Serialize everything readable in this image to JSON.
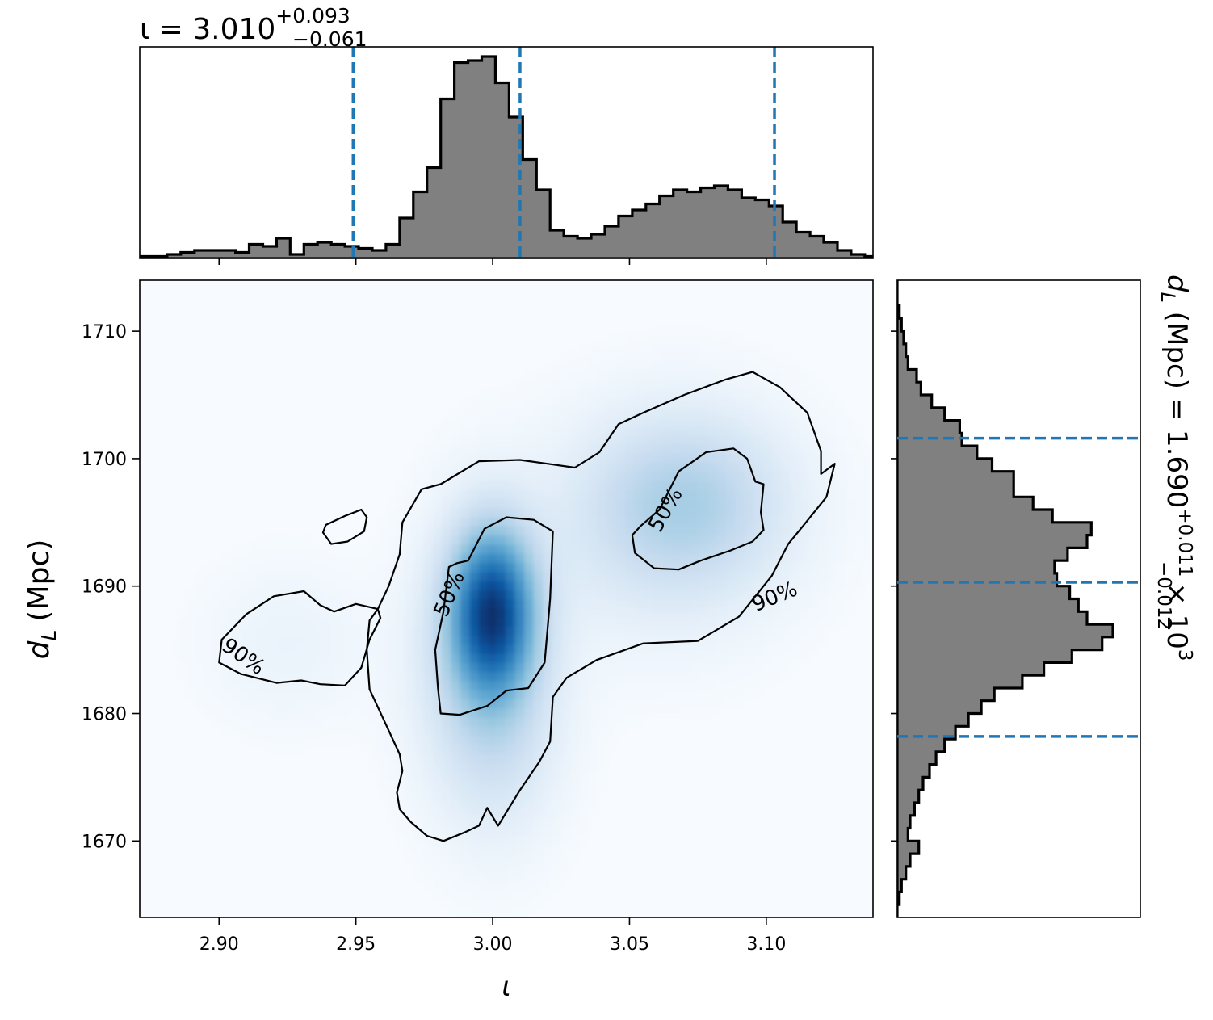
{
  "chart_data": {
    "type": "corner_plot",
    "variables": {
      "x": {
        "symbol": "ι",
        "label": "ι",
        "range": [
          2.871,
          3.139
        ],
        "ticks": [
          2.9,
          2.95,
          3.0,
          3.05,
          3.1
        ],
        "tick_labels": [
          "2.90",
          "2.95",
          "3.00",
          "3.05",
          "3.10"
        ]
      },
      "y": {
        "symbol": "d",
        "subscript": "L",
        "label_suffix": "(Mpc)",
        "range": [
          1664,
          1714
        ],
        "ticks": [
          1670,
          1680,
          1690,
          1700,
          1710
        ],
        "tick_labels": [
          "1670",
          "1680",
          "1690",
          "1700",
          "1710"
        ]
      }
    },
    "top_title": {
      "prefix": "ι = 3.010",
      "upper": "+0.093",
      "lower": "−0.061"
    },
    "right_title": {
      "prefix": "d",
      "sub": "L",
      "mid": " (Mpc) = 1.690",
      "upper": "+0.011",
      "lower": "−0.012",
      "suffix": " × 10",
      "power": "3"
    },
    "top_histogram": {
      "bins": [
        2.871,
        2.876,
        2.881,
        2.886,
        2.891,
        2.896,
        2.901,
        2.906,
        2.911,
        2.916,
        2.921,
        2.926,
        2.931,
        2.936,
        2.941,
        2.946,
        2.951,
        2.956,
        2.961,
        2.966,
        2.971,
        2.976,
        2.981,
        2.986,
        2.991,
        2.996,
        3.001,
        3.006,
        3.011,
        3.016,
        3.021,
        3.026,
        3.031,
        3.036,
        3.041,
        3.046,
        3.051,
        3.056,
        3.061,
        3.066,
        3.071,
        3.076,
        3.081,
        3.086,
        3.091,
        3.096,
        3.101,
        3.106,
        3.111,
        3.116,
        3.121,
        3.126,
        3.131,
        3.136,
        3.139
      ],
      "heights": [
        0.01,
        0.01,
        0.02,
        0.03,
        0.04,
        0.04,
        0.04,
        0.03,
        0.07,
        0.06,
        0.1,
        0.02,
        0.07,
        0.08,
        0.07,
        0.06,
        0.05,
        0.04,
        0.07,
        0.2,
        0.33,
        0.45,
        0.79,
        0.97,
        0.98,
        1.0,
        0.87,
        0.7,
        0.49,
        0.34,
        0.14,
        0.11,
        0.1,
        0.12,
        0.16,
        0.21,
        0.24,
        0.27,
        0.31,
        0.34,
        0.33,
        0.35,
        0.36,
        0.34,
        0.3,
        0.29,
        0.26,
        0.18,
        0.13,
        0.11,
        0.08,
        0.04,
        0.02,
        0.01
      ],
      "quantiles": [
        2.949,
        3.01,
        3.103
      ]
    },
    "right_histogram": {
      "bins": [
        1664,
        1665,
        1666,
        1667,
        1668,
        1669,
        1670,
        1671,
        1672,
        1673,
        1674,
        1675,
        1676,
        1677,
        1678,
        1679,
        1680,
        1681,
        1682,
        1683,
        1684,
        1685,
        1686,
        1687,
        1688,
        1689,
        1690,
        1691,
        1692,
        1693,
        1694,
        1695,
        1696,
        1697,
        1698,
        1699,
        1700,
        1701,
        1702,
        1703,
        1704,
        1705,
        1706,
        1707,
        1708,
        1709,
        1710,
        1711,
        1712,
        1713,
        1714
      ],
      "heights": [
        0.0,
        0.01,
        0.02,
        0.04,
        0.06,
        0.1,
        0.05,
        0.06,
        0.08,
        0.1,
        0.12,
        0.15,
        0.18,
        0.22,
        0.27,
        0.33,
        0.39,
        0.45,
        0.58,
        0.68,
        0.81,
        0.95,
        1.0,
        0.88,
        0.84,
        0.8,
        0.74,
        0.73,
        0.79,
        0.88,
        0.9,
        0.72,
        0.63,
        0.54,
        0.54,
        0.44,
        0.37,
        0.3,
        0.29,
        0.22,
        0.16,
        0.11,
        0.09,
        0.05,
        0.04,
        0.03,
        0.02,
        0.01,
        0.0,
        0.0
      ],
      "quantiles": [
        1678.2,
        1690.3,
        1701.6
      ]
    },
    "density_2d": {
      "colormap": "Blues",
      "modes": [
        {
          "x": 3.0,
          "y": 1688.0,
          "sx": 0.01,
          "sy": 4.2,
          "w": 1.0
        },
        {
          "x": 2.998,
          "y": 1684.0,
          "sx": 0.016,
          "sy": 7.0,
          "w": 0.3
        },
        {
          "x": 3.071,
          "y": 1696.7,
          "sx": 0.024,
          "sy": 4.5,
          "w": 0.28
        },
        {
          "x": 3.06,
          "y": 1694.0,
          "sx": 0.03,
          "sy": 6.0,
          "w": 0.1
        },
        {
          "x": 2.925,
          "y": 1685.5,
          "sx": 0.02,
          "sy": 4.0,
          "w": 0.05
        },
        {
          "x": 3.004,
          "y": 1677.0,
          "sx": 0.014,
          "sy": 5.0,
          "w": 0.06
        }
      ]
    },
    "contours": [
      {
        "label": "50%",
        "label_pos": [
          2.984,
          1689.4
        ],
        "label_angle": -67,
        "path": [
          [
            2.991,
            1692.0
          ],
          [
            2.997,
            1694.5
          ],
          [
            3.005,
            1695.4
          ],
          [
            3.015,
            1695.2
          ],
          [
            3.022,
            1694.3
          ],
          [
            3.021,
            1689.0
          ],
          [
            3.019,
            1684.0
          ],
          [
            3.013,
            1682.0
          ],
          [
            3.005,
            1681.8
          ],
          [
            2.998,
            1680.6
          ],
          [
            2.988,
            1679.9
          ],
          [
            2.981,
            1680.0
          ],
          [
            2.98,
            1682.0
          ],
          [
            2.979,
            1685.0
          ],
          [
            2.982,
            1688.0
          ],
          [
            2.984,
            1691.5
          ],
          [
            2.987,
            1691.8
          ],
          [
            2.991,
            1692.0
          ]
        ]
      },
      {
        "label": "50%",
        "label_pos": [
          3.063,
          1696.0
        ],
        "label_angle": -60,
        "path": [
          [
            3.061,
            1696.0
          ],
          [
            3.068,
            1699.0
          ],
          [
            3.078,
            1700.5
          ],
          [
            3.088,
            1700.8
          ],
          [
            3.093,
            1700.0
          ],
          [
            3.096,
            1698.2
          ],
          [
            3.099,
            1698.0
          ],
          [
            3.098,
            1695.8
          ],
          [
            3.099,
            1694.4
          ],
          [
            3.095,
            1693.5
          ],
          [
            3.087,
            1692.8
          ],
          [
            3.076,
            1692.0
          ],
          [
            3.068,
            1691.3
          ],
          [
            3.059,
            1691.4
          ],
          [
            3.052,
            1692.6
          ],
          [
            3.051,
            1694.0
          ],
          [
            3.054,
            1694.7
          ],
          [
            3.061,
            1696.0
          ]
        ]
      },
      {
        "label": "90%",
        "label_pos": [
          3.103,
          1689.2
        ],
        "label_angle": -22,
        "path": [
          [
            2.981,
            1698.0
          ],
          [
            2.995,
            1699.8
          ],
          [
            3.01,
            1699.9
          ],
          [
            3.02,
            1699.6
          ],
          [
            3.03,
            1699.3
          ],
          [
            3.039,
            1700.5
          ],
          [
            3.046,
            1702.7
          ],
          [
            3.055,
            1703.6
          ],
          [
            3.07,
            1705.0
          ],
          [
            3.085,
            1706.2
          ],
          [
            3.095,
            1706.8
          ],
          [
            3.105,
            1705.6
          ],
          [
            3.115,
            1703.6
          ],
          [
            3.12,
            1700.6
          ],
          [
            3.12,
            1698.8
          ],
          [
            3.125,
            1699.6
          ],
          [
            3.122,
            1697.0
          ],
          [
            3.113,
            1694.6
          ],
          [
            3.108,
            1693.3
          ],
          [
            3.102,
            1690.8
          ],
          [
            3.09,
            1687.6
          ],
          [
            3.075,
            1685.7
          ],
          [
            3.055,
            1685.5
          ],
          [
            3.038,
            1684.2
          ],
          [
            3.027,
            1682.8
          ],
          [
            3.022,
            1681.3
          ],
          [
            3.021,
            1677.8
          ],
          [
            3.017,
            1676.2
          ],
          [
            3.01,
            1674.0
          ],
          [
            3.002,
            1671.2
          ],
          [
            2.998,
            1672.6
          ],
          [
            2.995,
            1671.2
          ],
          [
            2.99,
            1670.7
          ],
          [
            2.982,
            1670.0
          ],
          [
            2.976,
            1670.4
          ],
          [
            2.97,
            1671.5
          ],
          [
            2.966,
            1672.5
          ],
          [
            2.965,
            1673.8
          ],
          [
            2.967,
            1675.5
          ],
          [
            2.966,
            1676.8
          ],
          [
            2.96,
            1679.6
          ],
          [
            2.955,
            1681.9
          ],
          [
            2.954,
            1685.0
          ],
          [
            2.955,
            1687.3
          ],
          [
            2.958,
            1688.2
          ],
          [
            2.962,
            1690.0
          ],
          [
            2.966,
            1692.5
          ],
          [
            2.967,
            1695.0
          ],
          [
            2.974,
            1697.6
          ],
          [
            2.981,
            1698.0
          ]
        ]
      },
      {
        "label": "90%",
        "label_pos": [
          2.909,
          1684.5
        ],
        "label_angle": 35,
        "path": [
          [
            2.901,
            1685.8
          ],
          [
            2.91,
            1687.8
          ],
          [
            2.92,
            1689.2
          ],
          [
            2.931,
            1689.6
          ],
          [
            2.937,
            1688.5
          ],
          [
            2.942,
            1688.0
          ],
          [
            2.95,
            1688.6
          ],
          [
            2.958,
            1688.2
          ],
          [
            2.959,
            1687.5
          ],
          [
            2.955,
            1685.8
          ],
          [
            2.952,
            1683.6
          ],
          [
            2.946,
            1682.2
          ],
          [
            2.937,
            1682.3
          ],
          [
            2.93,
            1682.6
          ],
          [
            2.921,
            1682.4
          ],
          [
            2.908,
            1683.1
          ],
          [
            2.9,
            1684.0
          ],
          [
            2.901,
            1685.8
          ]
        ]
      },
      {
        "label": "",
        "label_pos": null,
        "label_angle": 0,
        "path": [
          [
            2.939,
            1694.8
          ],
          [
            2.946,
            1695.5
          ],
          [
            2.952,
            1696.0
          ],
          [
            2.954,
            1695.4
          ],
          [
            2.953,
            1694.3
          ],
          [
            2.947,
            1693.5
          ],
          [
            2.941,
            1693.3
          ],
          [
            2.938,
            1694.2
          ],
          [
            2.939,
            1694.8
          ]
        ]
      }
    ]
  }
}
